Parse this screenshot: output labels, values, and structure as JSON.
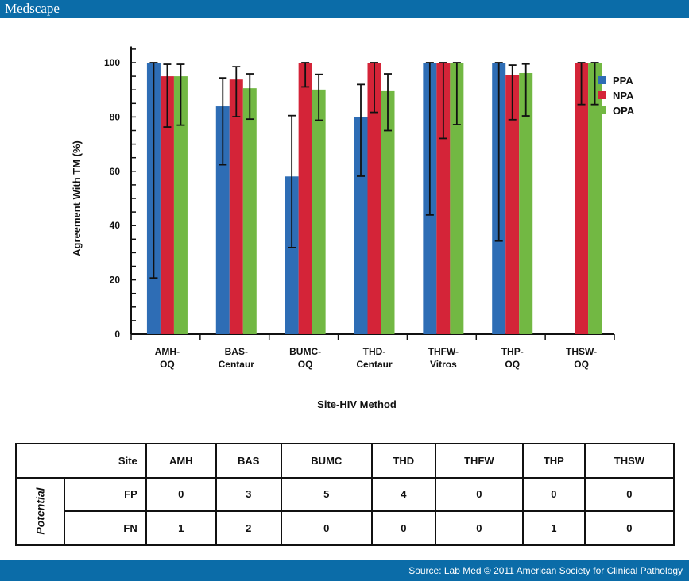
{
  "header": {
    "logo": "Medscape"
  },
  "footer": {
    "source": "Source: Lab Med © 2011 American Society for Clinical Pathology"
  },
  "chart_data": {
    "type": "bar",
    "xlabel": "Site-HIV Method",
    "ylabel": "Agreement With TM (%)",
    "ylim": [
      0,
      100
    ],
    "yticks": [
      0,
      20,
      40,
      60,
      80,
      100
    ],
    "legend_position": "right",
    "categories": [
      [
        "AMH-",
        "OQ"
      ],
      [
        "BAS-",
        "Centaur"
      ],
      [
        "BUMC-",
        "OQ"
      ],
      [
        "THD-",
        "Centaur"
      ],
      [
        "THFW-",
        "Vitros"
      ],
      [
        "THP-",
        "OQ"
      ],
      [
        "THSW-",
        "OQ"
      ]
    ],
    "series": [
      {
        "name": "PPA",
        "color": "#2e6db5",
        "values": [
          100,
          83.9,
          58.1,
          79.9,
          100,
          100,
          null
        ],
        "err_low": [
          20.7,
          62.4,
          31.9,
          58.2,
          43.9,
          34.3,
          null
        ],
        "err_high": [
          100,
          94.4,
          80.5,
          92,
          100,
          100,
          null
        ]
      },
      {
        "name": "NPA",
        "color": "#d42438",
        "values": [
          95,
          93.8,
          100,
          100,
          100,
          95.6,
          100
        ],
        "err_low": [
          76.3,
          80.1,
          91.1,
          81.7,
          72.1,
          79,
          84.6
        ],
        "err_high": [
          99.4,
          98.5,
          100,
          100,
          100,
          99.1,
          100
        ]
      },
      {
        "name": "OPA",
        "color": "#72b843",
        "values": [
          95,
          90.6,
          90.1,
          89.5,
          100,
          96.2,
          100
        ],
        "err_low": [
          77,
          79.2,
          78.8,
          75,
          77.2,
          80.4,
          84.6
        ],
        "err_high": [
          99.4,
          95.9,
          95.7,
          95.9,
          100,
          99.5,
          100
        ]
      }
    ]
  },
  "table": {
    "row_group": "Potential",
    "header_label": "Site",
    "sites": [
      "AMH",
      "BAS",
      "BUMC",
      "THD",
      "THFW",
      "THP",
      "THSW"
    ],
    "rows": [
      {
        "label": "FP",
        "values": [
          "0",
          "3",
          "5",
          "4",
          "0",
          "0",
          "0"
        ]
      },
      {
        "label": "FN",
        "values": [
          "1",
          "2",
          "0",
          "0",
          "0",
          "1",
          "0"
        ]
      }
    ]
  }
}
